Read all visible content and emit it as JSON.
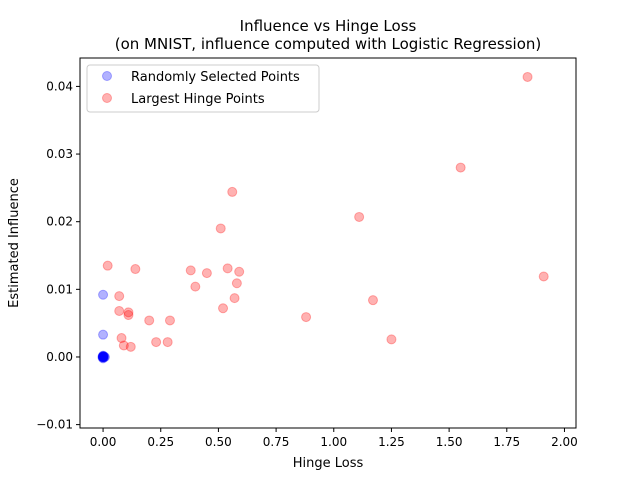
{
  "chart_data": {
    "type": "scatter",
    "title": "Influence vs Hinge Loss",
    "subtitle": "(on MNIST, influence computed with Logistic Regression)",
    "xlabel": "Hinge Loss",
    "ylabel": "Estimated Influence",
    "xlim": [
      -0.1,
      2.05
    ],
    "ylim": [
      -0.0105,
      0.0442
    ],
    "xticks": [
      "0.00",
      "0.25",
      "0.50",
      "0.75",
      "1.00",
      "1.25",
      "1.50",
      "1.75",
      "2.00"
    ],
    "yticks": [
      "−0.01",
      "0.00",
      "0.01",
      "0.02",
      "0.03",
      "0.04"
    ],
    "grid": false,
    "legend_position": "top-left",
    "series": [
      {
        "name": "Randomly Selected Points",
        "color": "#0000ff",
        "alpha": 0.3,
        "x": [
          0,
          0,
          0,
          0,
          0,
          0,
          0,
          0,
          0,
          0,
          0,
          0,
          0.003,
          0.005,
          0.008,
          -0.003
        ],
        "y": [
          0.0092,
          0.0033,
          0.0001,
          0.0,
          0.0,
          -0.0001,
          0.0002,
          -0.0002,
          0.0,
          0.0001,
          0.0,
          0.0,
          0.0001,
          0.0,
          0.0,
          0.0
        ]
      },
      {
        "name": "Largest Hinge Points",
        "color": "#ff0000",
        "alpha": 0.3,
        "x": [
          1.84,
          1.55,
          0.56,
          1.11,
          0.51,
          0.02,
          0.14,
          0.38,
          0.45,
          0.54,
          0.59,
          0.58,
          0.4,
          0.07,
          0.57,
          0.52,
          0.07,
          0.11,
          0.11,
          0.2,
          0.29,
          0.88,
          0.08,
          0.09,
          0.12,
          0.23,
          0.28,
          1.17,
          1.25,
          1.91
        ],
        "y": [
          0.0414,
          0.028,
          0.0244,
          0.0207,
          0.019,
          0.0135,
          0.013,
          0.0128,
          0.0124,
          0.0131,
          0.0126,
          0.0109,
          0.0104,
          0.009,
          0.0087,
          0.0072,
          0.0068,
          0.0066,
          0.0062,
          0.0054,
          0.0054,
          0.0059,
          0.0028,
          0.0017,
          0.0015,
          0.0022,
          0.0022,
          0.0084,
          0.0026,
          0.0119
        ]
      }
    ]
  }
}
